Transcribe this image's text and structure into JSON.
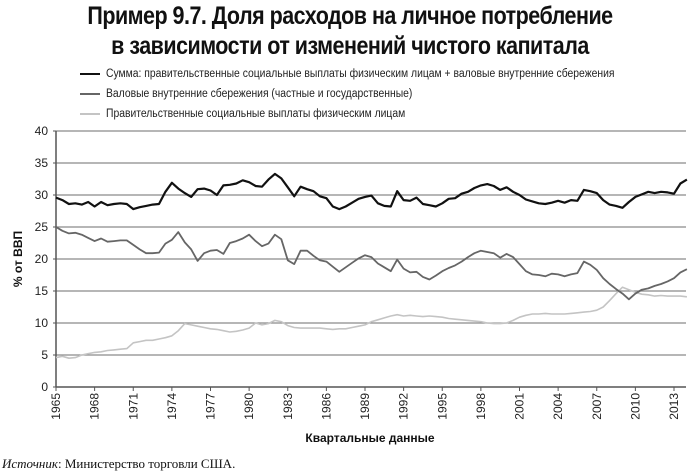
{
  "title": {
    "line1": "Пример 9.7. Доля расходов на личное потребление",
    "line2": "в зависимости от изменений чистого капитала"
  },
  "legend": {
    "items": [
      {
        "label": "Сумма: правительственные социальные выплаты физическим лицам + валовые внутренние сбережения",
        "color": "#111111"
      },
      {
        "label": "Валовые внутренние сбережения (частные и государственные)",
        "color": "#666666"
      },
      {
        "label": "Правительственные социальные выплаты физическим лицам",
        "color": "#c4c4c4"
      }
    ]
  },
  "axes": {
    "ylabel": "% от ВВП",
    "xlabel": "Квартальные данные",
    "yticks": [
      "0",
      "5",
      "10",
      "15",
      "20",
      "25",
      "30",
      "35",
      "40"
    ],
    "xticks": [
      "1965",
      "1968",
      "1971",
      "1974",
      "1977",
      "1980",
      "1983",
      "1986",
      "1989",
      "1992",
      "1995",
      "1998",
      "2001",
      "2004",
      "2007",
      "2010",
      "2013"
    ]
  },
  "source": {
    "label": "Источник",
    "text": ": Министерство торговли США."
  },
  "chart_data": {
    "type": "line",
    "title": "Пример 9.7. Доля расходов на личное потребление в зависимости от изменений чистого капитала",
    "xlabel": "Квартальные данные",
    "ylabel": "% от ВВП",
    "ylim": [
      0,
      40
    ],
    "xlim": [
      1965,
      2014.5
    ],
    "grid": "horizontal",
    "legend_position": "top",
    "x": [
      1965,
      1965.5,
      1966,
      1966.5,
      1967,
      1967.5,
      1968,
      1968.5,
      1969,
      1969.5,
      1970,
      1970.5,
      1971,
      1971.5,
      1972,
      1972.5,
      1973,
      1973.5,
      1974,
      1974.5,
      1975,
      1975.5,
      1976,
      1976.5,
      1977,
      1977.5,
      1978,
      1978.5,
      1979,
      1979.5,
      1980,
      1980.5,
      1981,
      1981.5,
      1982,
      1982.5,
      1983,
      1983.5,
      1984,
      1984.5,
      1985,
      1985.5,
      1986,
      1986.5,
      1987,
      1987.5,
      1988,
      1988.5,
      1989,
      1989.5,
      1990,
      1990.5,
      1991,
      1991.5,
      1992,
      1992.5,
      1993,
      1993.5,
      1994,
      1994.5,
      1995,
      1995.5,
      1996,
      1996.5,
      1997,
      1997.5,
      1998,
      1998.5,
      1999,
      1999.5,
      2000,
      2000.5,
      2001,
      2001.5,
      2002,
      2002.5,
      2003,
      2003.5,
      2004,
      2004.5,
      2005,
      2005.5,
      2006,
      2006.5,
      2007,
      2007.5,
      2008,
      2008.5,
      2009,
      2009.5,
      2010,
      2010.5,
      2011,
      2011.5,
      2012,
      2012.5,
      2013,
      2013.5,
      2014
    ],
    "series": [
      {
        "name": "Сумма: правительственные социальные выплаты физическим лицам + валовые внутренние сбережения",
        "color": "#111111",
        "values": [
          29.6,
          29.2,
          28.6,
          28.7,
          28.5,
          28.9,
          28.2,
          28.9,
          28.4,
          28.6,
          28.7,
          28.6,
          27.8,
          28.1,
          28.3,
          28.5,
          28.6,
          30.5,
          31.9,
          31.0,
          30.3,
          29.7,
          30.9,
          31.0,
          30.7,
          30.0,
          31.5,
          31.6,
          31.8,
          32.3,
          32.0,
          31.4,
          31.3,
          32.4,
          33.3,
          32.6,
          31.2,
          29.8,
          31.3,
          30.9,
          30.6,
          29.8,
          29.5,
          28.2,
          27.8,
          28.2,
          28.8,
          29.4,
          29.7,
          29.9,
          28.7,
          28.3,
          28.2,
          30.6,
          29.2,
          29.1,
          29.6,
          28.6,
          28.4,
          28.2,
          28.7,
          29.4,
          29.5,
          30.2,
          30.5,
          31.1,
          31.5,
          31.7,
          31.4,
          30.8,
          31.2,
          30.5,
          30.0,
          29.3,
          29.0,
          28.7,
          28.6,
          28.8,
          29.1,
          28.8,
          29.2,
          29.1,
          30.8,
          30.6,
          30.3,
          29.2,
          28.5,
          28.3,
          28.0,
          28.9,
          29.7,
          30.1,
          30.5,
          30.3,
          30.5,
          30.4,
          30.2,
          31.8,
          32.4
        ]
      },
      {
        "name": "Валовые внутренние сбережения (частные и государственные)",
        "color": "#666666",
        "values": [
          25.0,
          24.4,
          24.0,
          24.1,
          23.8,
          23.3,
          22.8,
          23.2,
          22.7,
          22.8,
          22.9,
          22.9,
          22.2,
          21.5,
          20.9,
          20.9,
          21.0,
          22.4,
          23.0,
          24.2,
          22.6,
          21.5,
          19.7,
          20.9,
          21.3,
          21.4,
          20.8,
          22.5,
          22.8,
          23.2,
          23.8,
          22.8,
          22.0,
          22.4,
          23.8,
          23.1,
          19.8,
          19.2,
          21.3,
          21.3,
          20.5,
          19.8,
          19.6,
          18.8,
          18.0,
          18.7,
          19.4,
          20.1,
          20.6,
          20.3,
          19.3,
          18.7,
          18.1,
          19.9,
          18.5,
          17.9,
          18.0,
          17.2,
          16.8,
          17.4,
          18.1,
          18.6,
          19.0,
          19.6,
          20.3,
          20.9,
          21.3,
          21.1,
          20.9,
          20.2,
          20.8,
          20.3,
          19.2,
          18.1,
          17.6,
          17.5,
          17.3,
          17.7,
          17.6,
          17.3,
          17.6,
          17.8,
          19.6,
          19.1,
          18.3,
          17.0,
          16.1,
          15.3,
          14.6,
          13.7,
          14.6,
          15.2,
          15.4,
          15.8,
          16.1,
          16.5,
          17.0,
          17.9,
          18.4
        ]
      },
      {
        "name": "Правительственные социальные выплаты физическим лицам",
        "color": "#c4c4c4",
        "values": [
          4.6,
          4.8,
          4.5,
          4.6,
          5.0,
          5.2,
          5.4,
          5.5,
          5.7,
          5.8,
          5.9,
          6.0,
          6.9,
          7.1,
          7.3,
          7.3,
          7.5,
          7.7,
          8.0,
          8.8,
          9.9,
          9.7,
          9.5,
          9.3,
          9.1,
          9.0,
          8.8,
          8.6,
          8.7,
          8.9,
          9.2,
          10.0,
          9.7,
          9.9,
          10.4,
          10.2,
          9.6,
          9.3,
          9.2,
          9.2,
          9.2,
          9.2,
          9.1,
          9.0,
          9.1,
          9.1,
          9.3,
          9.5,
          9.7,
          10.2,
          10.5,
          10.8,
          11.1,
          11.3,
          11.1,
          11.2,
          11.1,
          11.0,
          11.1,
          11.0,
          10.9,
          10.7,
          10.6,
          10.5,
          10.4,
          10.3,
          10.2,
          10.0,
          9.9,
          9.9,
          10.0,
          10.4,
          10.9,
          11.2,
          11.4,
          11.4,
          11.5,
          11.4,
          11.4,
          11.4,
          11.5,
          11.6,
          11.7,
          11.8,
          12.0,
          12.5,
          13.5,
          14.6,
          15.6,
          15.2,
          14.8,
          14.5,
          14.4,
          14.2,
          14.3,
          14.2,
          14.2,
          14.2,
          14.1
        ]
      }
    ]
  }
}
